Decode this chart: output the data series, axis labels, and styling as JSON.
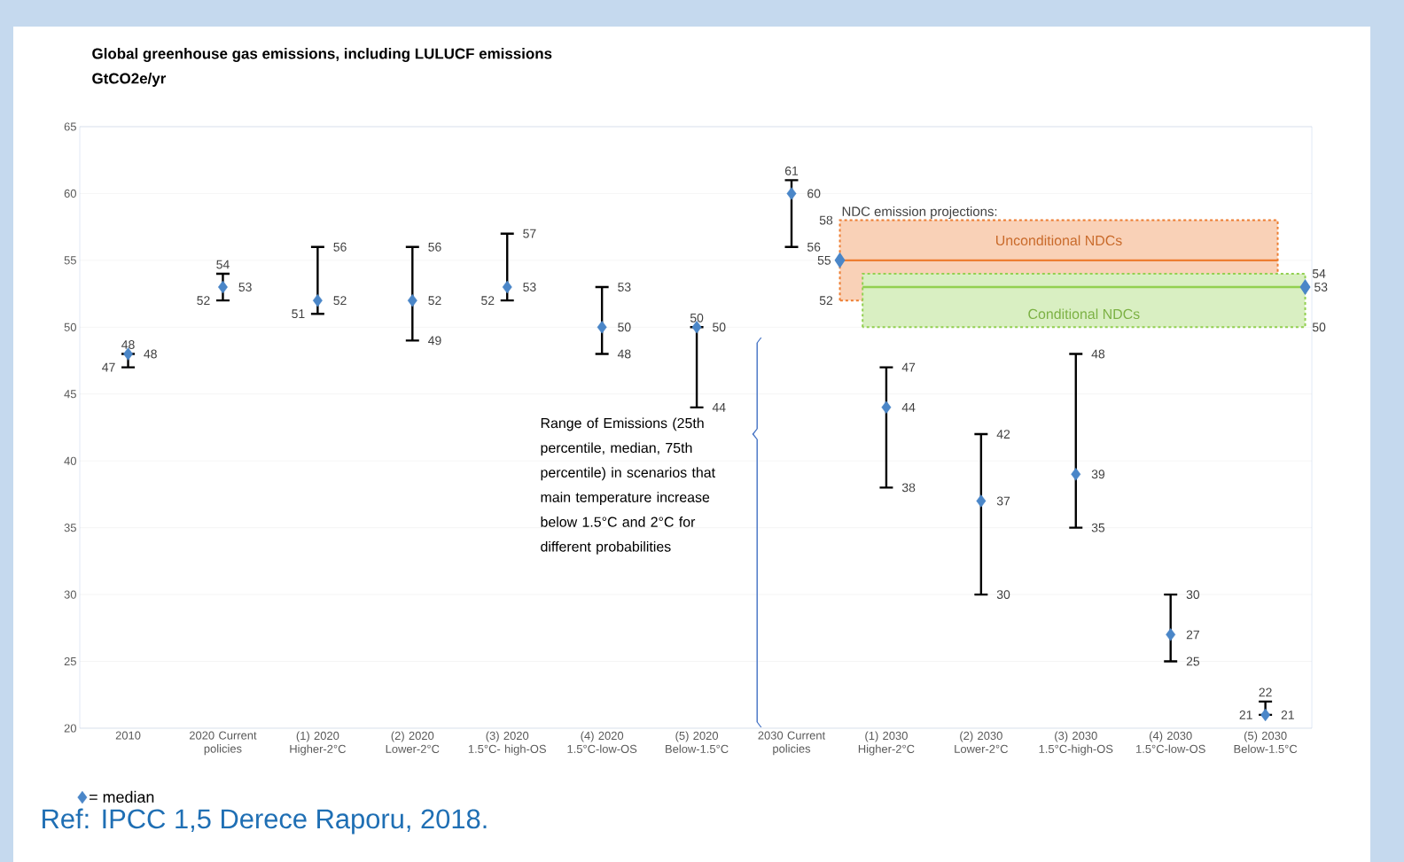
{
  "chart_data": {
    "type": "scatter",
    "title": "Global greenhouse gas emissions, including LULUCF emissions",
    "ylabel": "GtCO2e/yr",
    "categories": [
      "2010",
      "2020 Current policies",
      "(1) 2020 Higher-2°C",
      "(2) 2020 Lower-2°C",
      "(3) 2020 1.5°C- high-OS",
      "(4) 2020 1.5°C-low-OS",
      "(5) 2020 Below-1.5°C",
      "2030 Current policies",
      "(1) 2030 Higher-2°C",
      "(2) 2030 Lower-2°C",
      "(3) 2030 1.5°C-high-OS",
      "(4) 2030 1.5°C-low-OS",
      "(5) 2030 Below-1.5°C"
    ],
    "series": [
      {
        "name": "= median",
        "color": "#4a86c8",
        "values": [
          48,
          53,
          52,
          52,
          53,
          50,
          50,
          60,
          44,
          37,
          39,
          27,
          21
        ],
        "errors": [
          [
            47,
            48
          ],
          [
            52,
            54
          ],
          [
            51,
            56
          ],
          [
            49,
            56
          ],
          [
            52,
            57
          ],
          [
            48,
            53
          ],
          [
            44,
            50
          ],
          [
            56,
            61
          ],
          [
            38,
            47
          ],
          [
            30,
            42
          ],
          [
            35,
            48
          ],
          [
            25,
            30
          ],
          [
            21,
            22
          ]
        ]
      }
    ],
    "bands": [
      {
        "axis": "y",
        "from": 52,
        "to": 58,
        "label": "Unconditional NDCs",
        "color": "#ed7d31"
      },
      {
        "axis": "y",
        "from": 50,
        "to": 54,
        "label": "Conditional NDCs",
        "color": "#92d050"
      }
    ],
    "ref_lines": [
      {
        "axis": "y",
        "value": 55,
        "label": "55",
        "color": "#ed7d31"
      },
      {
        "axis": "y",
        "value": 53,
        "label": "53",
        "color": "#92d050"
      }
    ],
    "ylim": [
      20,
      65
    ],
    "yticks": [
      20,
      25,
      30,
      35,
      40,
      45,
      50,
      55,
      60,
      65
    ],
    "grid": "y",
    "legend": "bottom left",
    "marker": "diamond",
    "data_labels": true,
    "annotations": [
      "NDC emission projections:",
      "Range of Emissions (25th percentile, median, 75th percentile) in scenarios that main temperature increase below 1.5°C and 2°C for different probabilities",
      "Ref: IPCC 1,5 Derece Raporu, 2018.",
      {
        "text": "48",
        "x": "2010",
        "y": 48
      },
      {
        "text": "47",
        "x": "2010",
        "y": 47
      },
      {
        "text": "54",
        "x": "2020 Current policies",
        "y": 54
      },
      {
        "text": "52",
        "x": "2020 Current policies",
        "y": 52
      },
      {
        "text": "56",
        "x": "(1) 2020 Higher-2°C",
        "y": 56
      },
      {
        "text": "51",
        "x": "(1) 2020 Higher-2°C",
        "y": 51
      },
      {
        "text": "56",
        "x": "(2) 2020 Lower-2°C",
        "y": 56
      },
      {
        "text": "49",
        "x": "(2) 2020 Lower-2°C",
        "y": 49
      },
      {
        "text": "57",
        "x": "(3) 2020 1.5°C- high-OS",
        "y": 57
      },
      {
        "text": "52",
        "x": "(3) 2020 1.5°C- high-OS",
        "y": 52
      },
      {
        "text": "53",
        "x": "(4) 2020 1.5°C-low-OS",
        "y": 53
      },
      {
        "text": "48",
        "x": "(4) 2020 1.5°C-low-OS",
        "y": 48
      },
      {
        "text": "50",
        "x": "(5) 2020 Below-1.5°C",
        "y": 50
      },
      {
        "text": "44",
        "x": "(5) 2020 Below-1.5°C",
        "y": 44
      },
      {
        "text": "61",
        "x": "2030 Current policies",
        "y": 61
      },
      {
        "text": "56",
        "x": "2030 Current policies",
        "y": 56
      },
      {
        "text": "47",
        "x": "(1) 2030 Higher-2°C",
        "y": 47
      },
      {
        "text": "38",
        "x": "(1) 2030 Higher-2°C",
        "y": 38
      },
      {
        "text": "42",
        "x": "(2) 2030 Lower-2°C",
        "y": 42
      },
      {
        "text": "30",
        "x": "(2) 2030 Lower-2°C",
        "y": 30
      },
      {
        "text": "48",
        "x": "(3) 2030 1.5°C-high-OS",
        "y": 48
      },
      {
        "text": "35",
        "x": "(3) 2030 1.5°C-high-OS",
        "y": 35
      },
      {
        "text": "30",
        "x": "(4) 2030 1.5°C-low-OS",
        "y": 30
      },
      {
        "text": "25",
        "x": "(4) 2030 1.5°C-low-OS",
        "y": 25
      },
      {
        "text": "22",
        "x": "(5) 2030 Below-1.5°C",
        "y": 22
      },
      {
        "text": "21",
        "x": "(5) 2030 Below-1.5°C",
        "y": 21
      },
      "58",
      "52",
      "54",
      "50"
    ]
  }
}
